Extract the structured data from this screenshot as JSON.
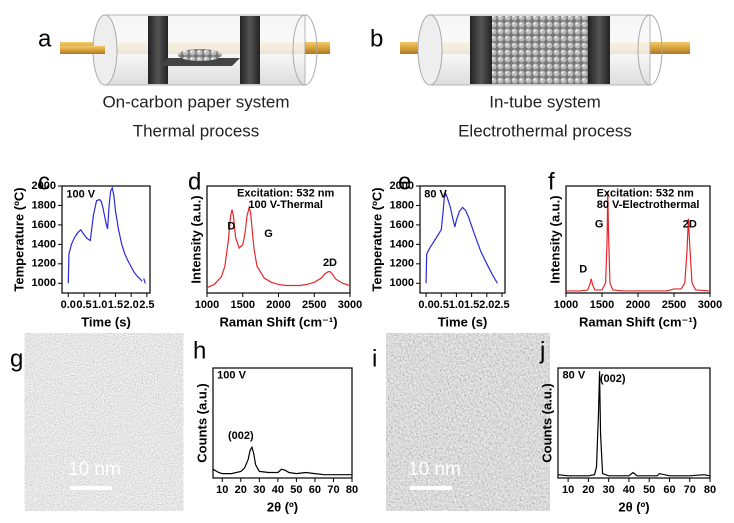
{
  "panels": [
    {
      "letter": "a",
      "caption": [
        "On-carbon paper system",
        "Thermal process"
      ]
    },
    {
      "letter": "b",
      "caption": [
        "In-tube system",
        "Electrothermal process"
      ]
    }
  ],
  "images": [
    {
      "letter": "g",
      "scale_bar": "10 nm"
    },
    {
      "letter": "i",
      "scale_bar": "10 nm"
    }
  ],
  "chart_data": [
    {
      "type": "line",
      "letter": "c",
      "xlabel": "Time (s)",
      "ylabel": "Temperature (ºC)",
      "annotations": [
        "100 V"
      ],
      "xlim": [
        -0.2,
        2.6
      ],
      "ylim": [
        900,
        2000
      ],
      "xticks": [
        {
          "value": 0,
          "label": "0.0"
        },
        {
          "value": 0.5,
          "label": "0.5"
        },
        {
          "value": 1,
          "label": "1.0"
        },
        {
          "value": 1.5,
          "label": "1.5"
        },
        {
          "value": 2,
          "label": "2.0"
        },
        {
          "value": 2.5,
          "label": "2.5"
        }
      ],
      "yticks": [
        1000,
        1200,
        1400,
        1600,
        1800,
        2000
      ],
      "color": "#2b2bd6",
      "x": [
        0,
        0.02,
        0.1,
        0.2,
        0.3,
        0.4,
        0.5,
        0.6,
        0.7,
        0.8,
        0.9,
        1.0,
        1.05,
        1.1,
        1.2,
        1.25,
        1.3,
        1.35,
        1.4,
        1.45,
        1.5,
        1.6,
        1.7,
        1.8,
        1.9,
        2.0,
        2.1,
        2.2,
        2.3,
        2.35,
        null,
        2.4,
        2.45
      ],
      "values": [
        1000,
        1300,
        1400,
        1470,
        1520,
        1550,
        1500,
        1460,
        1440,
        1700,
        1850,
        1860,
        1840,
        1780,
        1620,
        1560,
        1800,
        1950,
        1980,
        1900,
        1750,
        1550,
        1400,
        1300,
        1230,
        1170,
        1110,
        1070,
        1040,
        1020,
        null,
        1050,
        1000
      ]
    },
    {
      "type": "line",
      "letter": "d",
      "xlabel": "Raman Shift (cm⁻¹)",
      "ylabel": "Intensity (a.u.)",
      "annotations": [
        "Excitation: 532 nm",
        "100 V-Thermal",
        "D",
        "G",
        "2D"
      ],
      "xlim": [
        1000,
        3000
      ],
      "ylim": [
        0,
        1
      ],
      "xticks": [
        1000,
        1500,
        2000,
        2500,
        3000
      ],
      "color": "#e8262a",
      "x": [
        1000,
        1100,
        1200,
        1250,
        1300,
        1330,
        1350,
        1370,
        1400,
        1450,
        1500,
        1530,
        1560,
        1590,
        1610,
        1630,
        1660,
        1700,
        1800,
        1900,
        2000,
        2100,
        2200,
        2300,
        2400,
        2500,
        2600,
        2650,
        2700,
        2720,
        2750,
        2800,
        2900,
        3000
      ],
      "values": [
        0.05,
        0.08,
        0.15,
        0.25,
        0.5,
        0.72,
        0.78,
        0.72,
        0.52,
        0.42,
        0.45,
        0.55,
        0.72,
        0.8,
        0.75,
        0.6,
        0.4,
        0.25,
        0.14,
        0.1,
        0.08,
        0.07,
        0.07,
        0.07,
        0.08,
        0.1,
        0.14,
        0.18,
        0.2,
        0.2,
        0.18,
        0.13,
        0.09,
        0.07
      ]
    },
    {
      "type": "line",
      "letter": "e",
      "xlabel": "Time (s)",
      "ylabel": "Temperature (ºC)",
      "annotations": [
        "80 V"
      ],
      "xlim": [
        -0.2,
        2.6
      ],
      "ylim": [
        900,
        2000
      ],
      "xticks": [
        {
          "value": 0,
          "label": "0.0"
        },
        {
          "value": 0.5,
          "label": "0.5"
        },
        {
          "value": 1,
          "label": "1.0"
        },
        {
          "value": 1.5,
          "label": "1.5"
        },
        {
          "value": 2,
          "label": "2.0"
        },
        {
          "value": 2.5,
          "label": "2.5"
        }
      ],
      "yticks": [
        1000,
        1200,
        1400,
        1600,
        1800,
        2000
      ],
      "color": "#2b2bd6",
      "x": [
        0,
        0.02,
        0.1,
        0.2,
        0.3,
        0.4,
        0.5,
        0.55,
        0.6,
        0.65,
        0.7,
        0.8,
        0.9,
        0.95,
        1.0,
        1.1,
        1.2,
        1.3,
        1.4,
        1.6,
        1.8,
        2.0,
        2.2,
        2.35
      ],
      "values": [
        1000,
        1300,
        1350,
        1400,
        1450,
        1500,
        1550,
        1700,
        1880,
        1920,
        1880,
        1780,
        1640,
        1580,
        1650,
        1740,
        1780,
        1750,
        1680,
        1500,
        1330,
        1200,
        1080,
        1000
      ]
    },
    {
      "type": "line",
      "letter": "f",
      "xlabel": "Raman Shift (cm⁻¹)",
      "ylabel": "Intensity (a.u.)",
      "annotations": [
        "Excitation: 532 nm",
        "80 V-Electrothermal",
        "D",
        "G",
        "2D"
      ],
      "xlim": [
        1000,
        3000
      ],
      "ylim": [
        0,
        1.05
      ],
      "xticks": [
        1000,
        1500,
        2000,
        2500,
        3000
      ],
      "color": "#e8262a",
      "x": [
        1000,
        1200,
        1300,
        1330,
        1350,
        1370,
        1400,
        1500,
        1550,
        1570,
        1580,
        1590,
        1610,
        1650,
        1800,
        2000,
        2200,
        2400,
        2500,
        2600,
        2650,
        2680,
        2700,
        2720,
        2750,
        2800,
        3000
      ],
      "values": [
        0.02,
        0.02,
        0.03,
        0.08,
        0.14,
        0.08,
        0.03,
        0.03,
        0.1,
        0.5,
        1.0,
        0.6,
        0.1,
        0.03,
        0.02,
        0.02,
        0.02,
        0.02,
        0.04,
        0.04,
        0.1,
        0.4,
        0.73,
        0.45,
        0.1,
        0.03,
        0.02
      ]
    },
    {
      "type": "line",
      "letter": "h",
      "xlabel": "2θ (º)",
      "ylabel": "Counts (a.u.)",
      "annotations": [
        "100 V",
        "(002)"
      ],
      "xlim": [
        5,
        80
      ],
      "ylim": [
        0,
        1
      ],
      "xticks": [
        10,
        20,
        30,
        40,
        50,
        60,
        70,
        80
      ],
      "color": "#000000",
      "x": [
        5,
        8,
        10,
        15,
        20,
        22,
        24,
        25,
        26,
        27,
        28,
        30,
        35,
        40,
        42,
        44,
        46,
        50,
        55,
        60,
        65,
        70,
        75,
        80
      ],
      "values": [
        0.08,
        0.05,
        0.04,
        0.04,
        0.06,
        0.09,
        0.17,
        0.25,
        0.28,
        0.22,
        0.12,
        0.06,
        0.05,
        0.05,
        0.08,
        0.07,
        0.05,
        0.04,
        0.05,
        0.04,
        0.03,
        0.03,
        0.03,
        0.03
      ]
    },
    {
      "type": "line",
      "letter": "j",
      "xlabel": "2θ (º)",
      "ylabel": "Counts (a.u.)",
      "annotations": [
        "80 V",
        "(002)"
      ],
      "xlim": [
        5,
        80
      ],
      "ylim": [
        0,
        1
      ],
      "xticks": [
        10,
        20,
        30,
        40,
        50,
        60,
        70,
        80
      ],
      "color": "#000000",
      "x": [
        5,
        10,
        15,
        20,
        23,
        24,
        25,
        25.5,
        26,
        27,
        30,
        35,
        40,
        42,
        44,
        50,
        54,
        55,
        60,
        70,
        77,
        80
      ],
      "values": [
        0.03,
        0.02,
        0.02,
        0.02,
        0.03,
        0.1,
        0.6,
        0.97,
        0.4,
        0.04,
        0.02,
        0.02,
        0.02,
        0.05,
        0.02,
        0.02,
        0.02,
        0.04,
        0.02,
        0.02,
        0.03,
        0.02
      ]
    }
  ]
}
